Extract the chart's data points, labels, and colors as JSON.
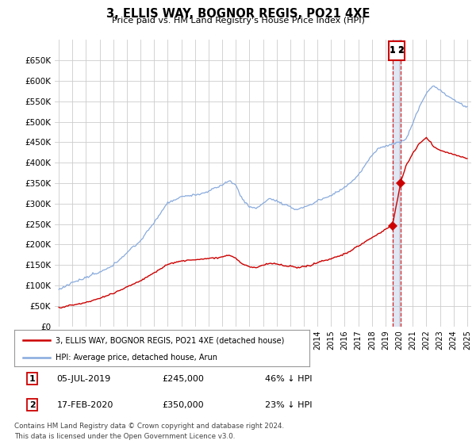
{
  "title": "3, ELLIS WAY, BOGNOR REGIS, PO21 4XE",
  "subtitle": "Price paid vs. HM Land Registry's House Price Index (HPI)",
  "hpi_color": "#88aadd",
  "property_color": "#cc0000",
  "annotation_color": "#cc0000",
  "grid_color": "#cccccc",
  "bg_color": "#ffffff",
  "ylim": [
    0,
    700000
  ],
  "yticks": [
    0,
    50000,
    100000,
    150000,
    200000,
    250000,
    300000,
    350000,
    400000,
    450000,
    500000,
    550000,
    600000,
    650000
  ],
  "xlim_start": 1994.7,
  "xlim_end": 2025.3,
  "transaction1_x": 2019.51,
  "transaction1_y": 245000,
  "transaction2_x": 2020.12,
  "transaction2_y": 350000,
  "legend_property": "3, ELLIS WAY, BOGNOR REGIS, PO21 4XE (detached house)",
  "legend_hpi": "HPI: Average price, detached house, Arun",
  "table_row1": [
    "1",
    "05-JUL-2019",
    "£245,000",
    "46% ↓ HPI"
  ],
  "table_row2": [
    "2",
    "17-FEB-2020",
    "£350,000",
    "23% ↓ HPI"
  ],
  "footer": "Contains HM Land Registry data © Crown copyright and database right 2024.\nThis data is licensed under the Open Government Licence v3.0."
}
